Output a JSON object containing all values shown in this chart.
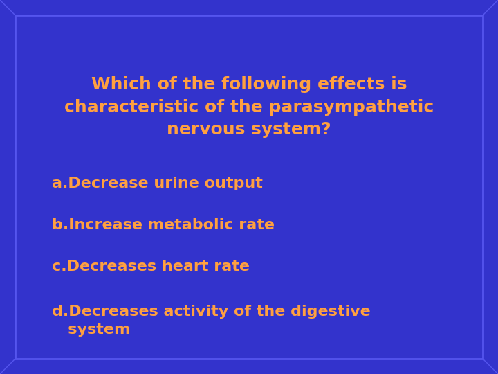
{
  "background_color": "#3333cc",
  "inner_bg_color": "#3535cc",
  "border_outer_color": "#1111aa",
  "border_inner_color": "#5555ee",
  "text_color": "#FFA040",
  "title_lines": [
    "Which of the following effects is",
    "characteristic of the parasympathetic",
    "nervous system?"
  ],
  "options": [
    "a.Decrease urine output",
    "b.Increase metabolic rate",
    "c.Decreases heart rate",
    "d.Decreases activity of the digestive\n   system"
  ],
  "title_fontsize": 18,
  "option_fontsize": 16,
  "fig_width": 7.2,
  "fig_height": 5.4,
  "dpi": 100
}
